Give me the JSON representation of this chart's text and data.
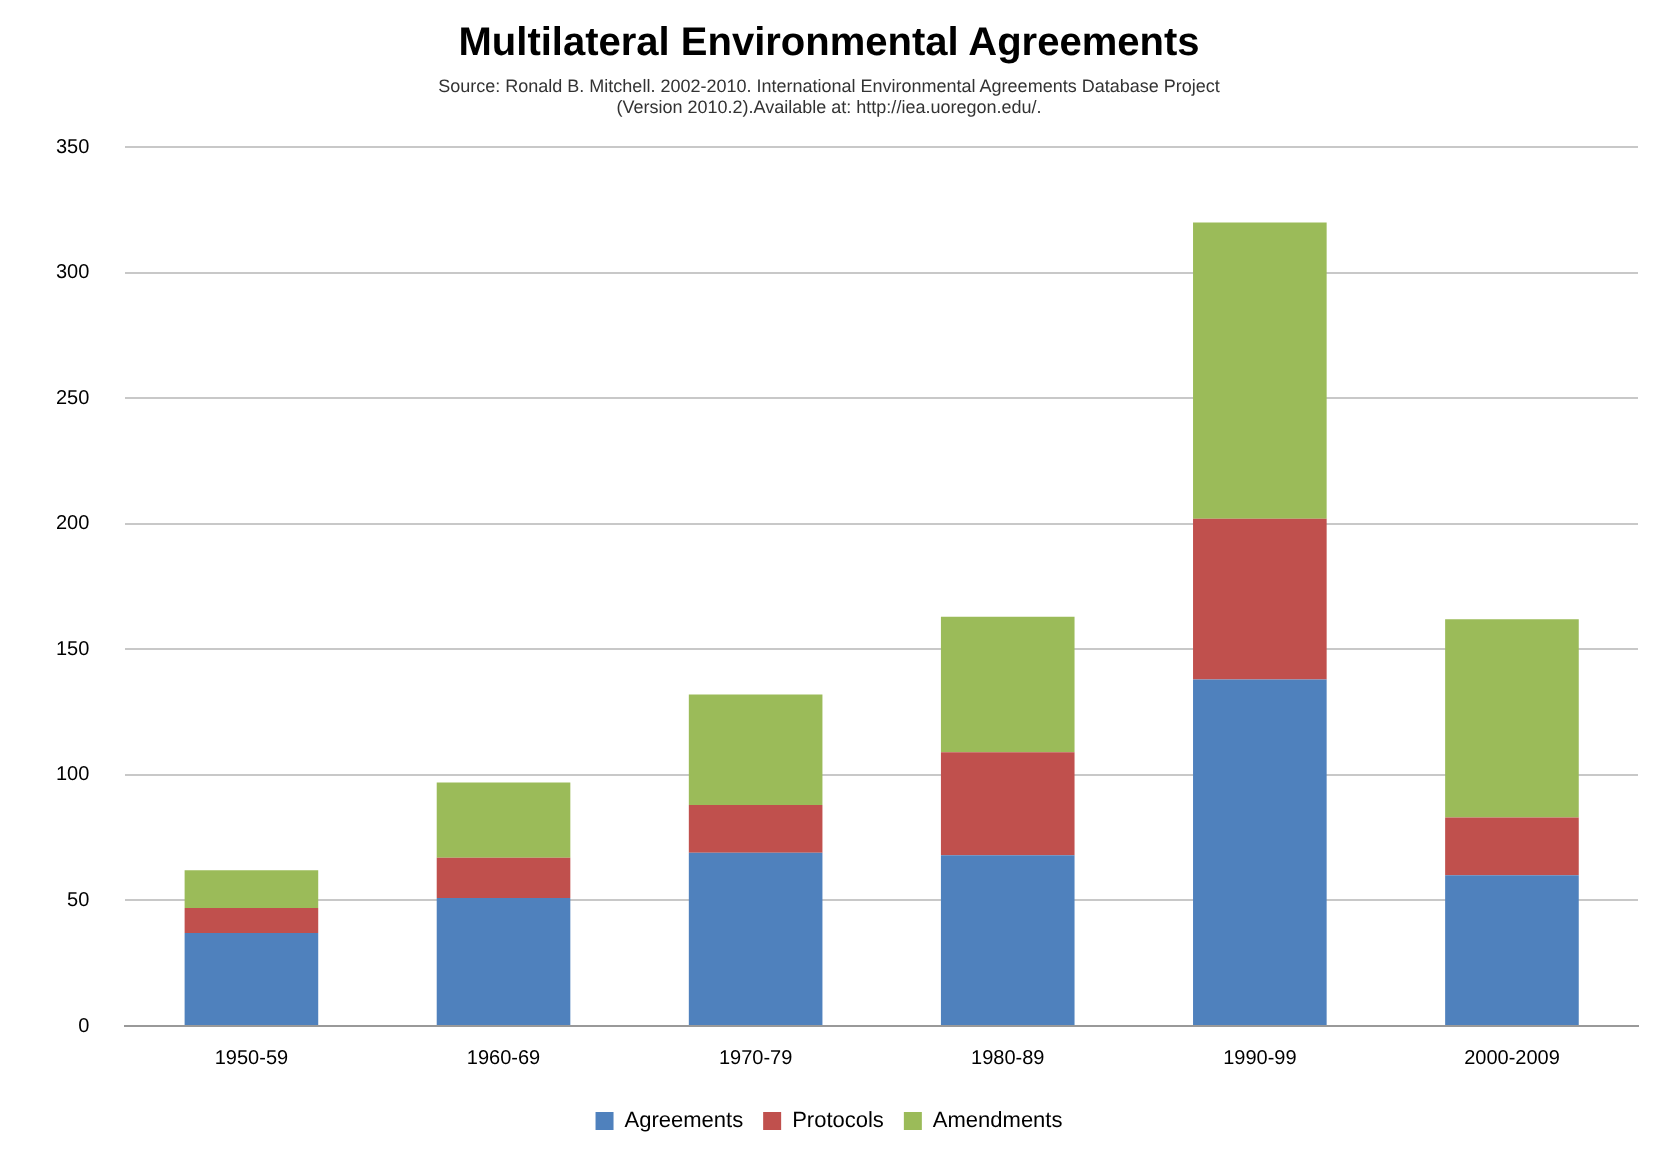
{
  "chart_data": {
    "type": "bar",
    "title": "Multilateral Environmental Agreements",
    "subtitle": "Source: Ronald B. Mitchell. 2002-2010. International Environmental Agreements Database Project\n(Version 2010.2).Available at: http://iea.uoregon.edu/.",
    "categories": [
      "1950-59",
      "1960-69",
      "1970-79",
      "1980-89",
      "1990-99",
      "2000-2009"
    ],
    "stacked": true,
    "series": [
      {
        "name": "Agreements",
        "color": "#4f81bd",
        "values": [
          37,
          51,
          69,
          68,
          138,
          60
        ]
      },
      {
        "name": "Protocols",
        "color": "#c0504d",
        "values": [
          10,
          16,
          19,
          41,
          64,
          23
        ]
      },
      {
        "name": "Amendments",
        "color": "#9bbb59",
        "values": [
          15,
          30,
          44,
          54,
          118,
          79
        ]
      }
    ],
    "ylim": [
      0,
      350
    ],
    "yticks": [
      0,
      50,
      100,
      150,
      200,
      250,
      300,
      350
    ],
    "grid": "y",
    "legend": "bottom"
  }
}
